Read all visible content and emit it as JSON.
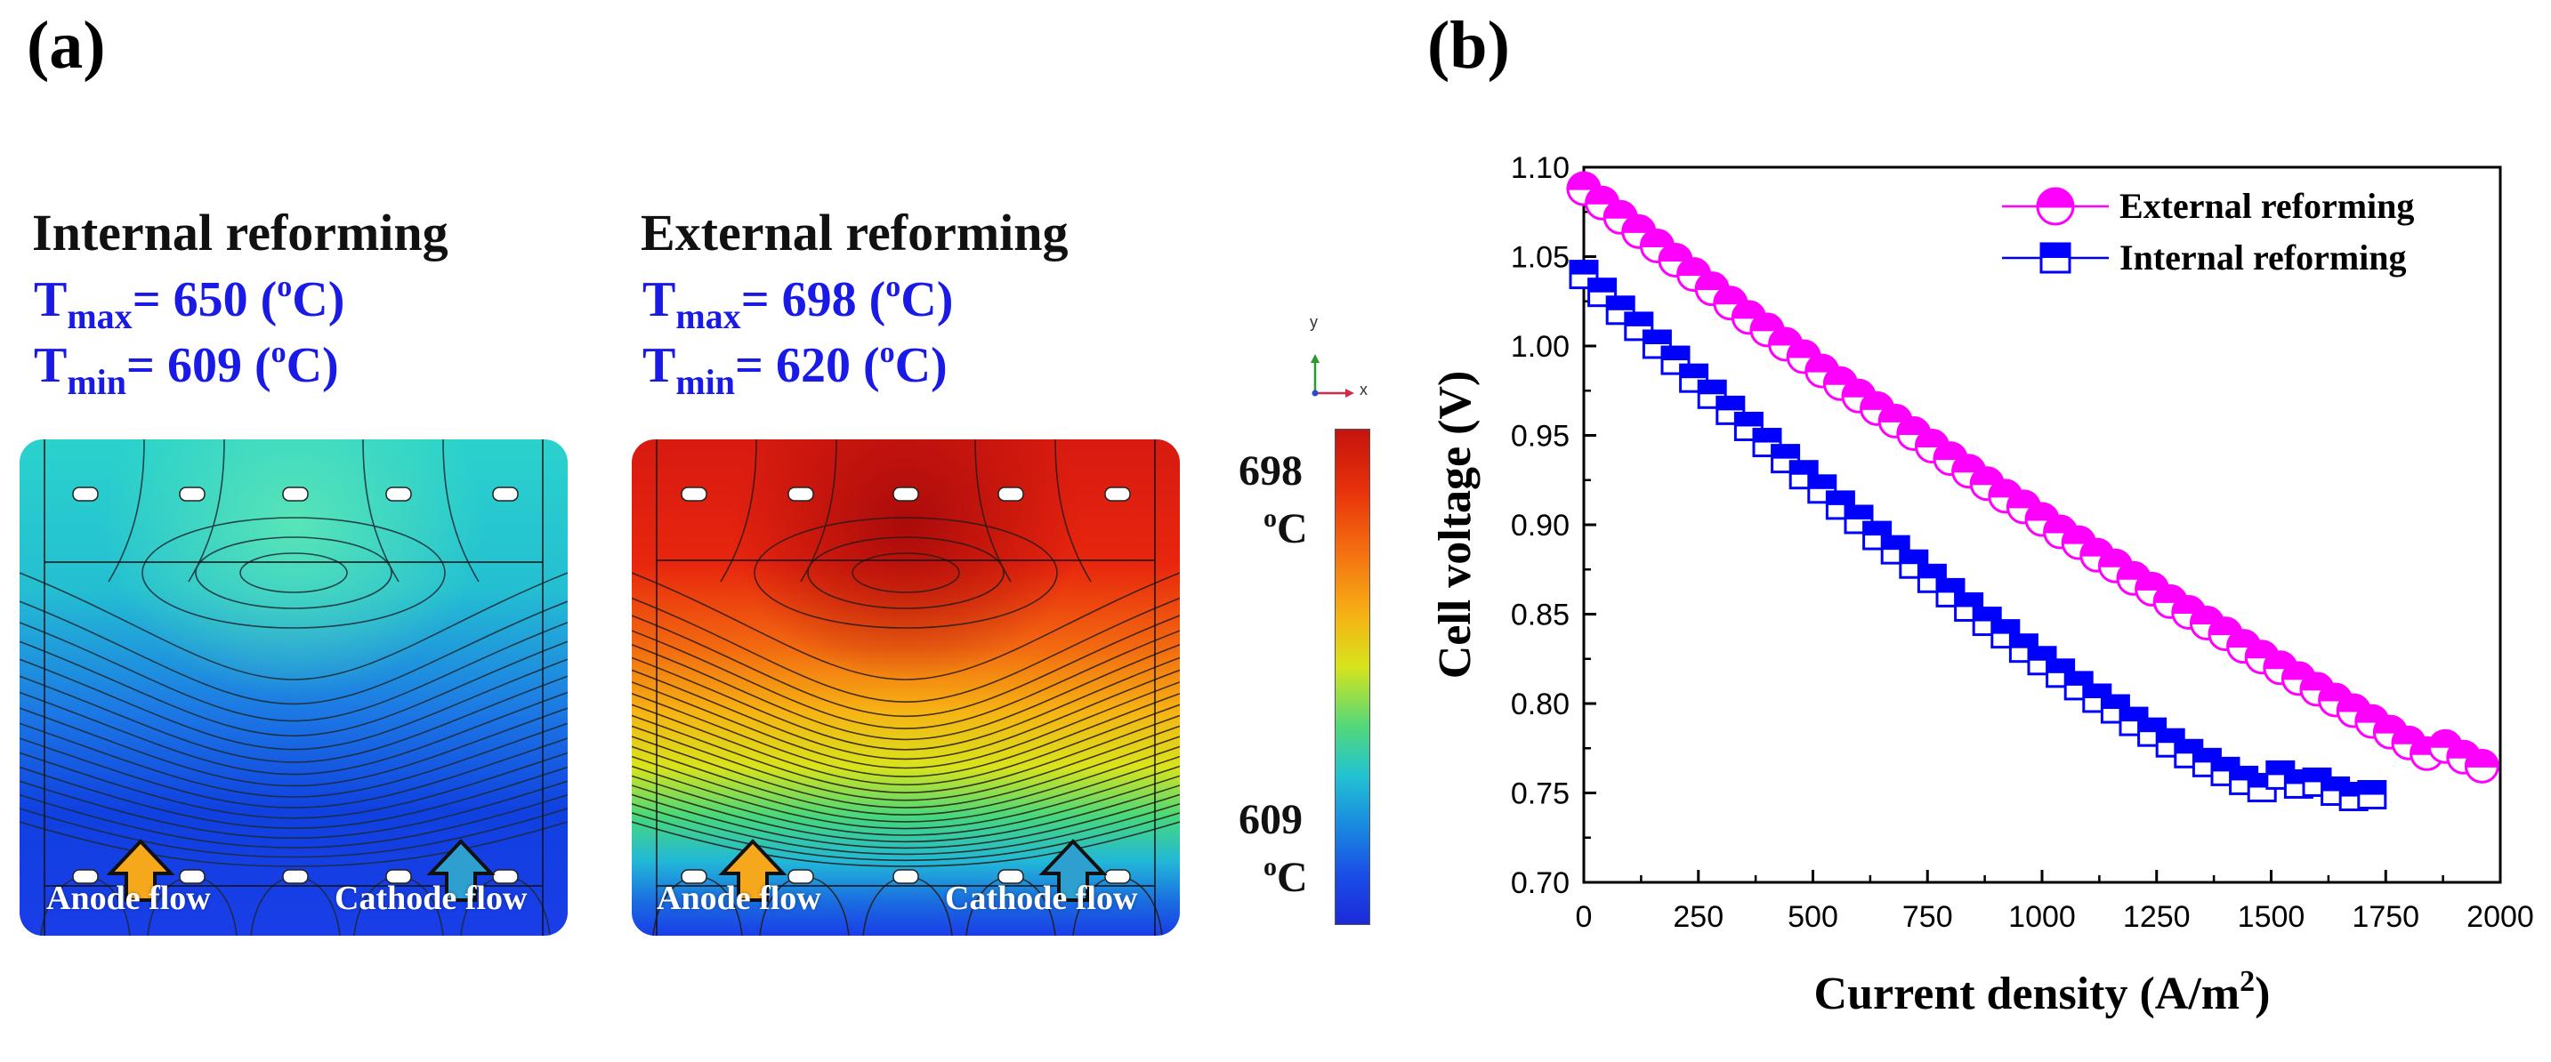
{
  "panel_a": {
    "label": "(a)",
    "internal": {
      "title": "Internal reforming",
      "tmax_prefix": "T",
      "tmax_sub": "max",
      "tmax_value": "= 650 (",
      "tmax_sup": "o",
      "tmax_unit": "C)",
      "tmin_prefix": "T",
      "tmin_sub": "min",
      "tmin_value": "= 609 (",
      "tmin_sup": "o",
      "tmin_unit": "C)",
      "anode_label": "Anode flow",
      "cathode_label": "Cathode flow"
    },
    "external": {
      "title": "External reforming",
      "tmax_prefix": "T",
      "tmax_sub": "max",
      "tmax_value": "= 698 (",
      "tmax_sup": "o",
      "tmax_unit": "C)",
      "tmin_prefix": "T",
      "tmin_sub": "min",
      "tmin_value": "= 620 (",
      "tmin_sup": "o",
      "tmin_unit": "C)",
      "anode_label": "Anode flow",
      "cathode_label": "Cathode flow"
    },
    "triad": {
      "y": "y",
      "x": "x"
    },
    "colorbar": {
      "max_value": "698",
      "max_unit_sup": "o",
      "max_unit": "C",
      "min_value": "609",
      "min_unit_sup": "o",
      "min_unit": "C"
    },
    "colors": {
      "anode_arrow": "#f5a81c",
      "cathode_arrow": "#2f9fd0",
      "text_blue": "#1a1ae6"
    }
  },
  "panel_b": {
    "label": "(b)"
  },
  "chart_data": {
    "type": "line",
    "title": "",
    "xlabel": "Current density (A/m",
    "xlabel_sup": "2",
    "xlabel_end": ")",
    "ylabel": "Cell voltage (V)",
    "xlim": [
      0,
      2000
    ],
    "ylim": [
      0.7,
      1.1
    ],
    "xticks": [
      0,
      250,
      500,
      750,
      1000,
      1250,
      1500,
      1750,
      2000
    ],
    "yticks": [
      0.7,
      0.75,
      0.8,
      0.85,
      0.9,
      0.95,
      1.0,
      1.05,
      1.1
    ],
    "xtick_labels": [
      "0",
      "250",
      "500",
      "750",
      "1000",
      "1250",
      "1500",
      "1750",
      "2000"
    ],
    "ytick_labels": [
      "0.70",
      "0.75",
      "0.80",
      "0.85",
      "0.90",
      "0.95",
      "1.00",
      "1.05",
      "1.10"
    ],
    "legend_position": "top-right",
    "series": [
      {
        "name": "External reforming",
        "marker": "circle-half",
        "color": "#ff00ff",
        "x": [
          0,
          40,
          80,
          120,
          160,
          200,
          240,
          280,
          320,
          360,
          400,
          440,
          480,
          520,
          560,
          600,
          640,
          680,
          720,
          760,
          800,
          840,
          880,
          920,
          960,
          1000,
          1040,
          1080,
          1120,
          1160,
          1200,
          1240,
          1280,
          1320,
          1360,
          1400,
          1440,
          1480,
          1520,
          1560,
          1600,
          1640,
          1680,
          1720,
          1760,
          1800,
          1840,
          1880,
          1920,
          1960
        ],
        "y": [
          1.088,
          1.08,
          1.072,
          1.064,
          1.056,
          1.048,
          1.04,
          1.032,
          1.024,
          1.016,
          1.009,
          1.001,
          0.994,
          0.986,
          0.979,
          0.972,
          0.965,
          0.958,
          0.951,
          0.944,
          0.937,
          0.93,
          0.923,
          0.916,
          0.91,
          0.903,
          0.896,
          0.89,
          0.883,
          0.877,
          0.87,
          0.864,
          0.857,
          0.851,
          0.845,
          0.839,
          0.832,
          0.826,
          0.82,
          0.814,
          0.808,
          0.802,
          0.796,
          0.79,
          0.784,
          0.778,
          0.772,
          0.776,
          0.77,
          0.765
        ]
      },
      {
        "name": "Internal reforming",
        "marker": "square-half",
        "color": "#0000ff",
        "x": [
          0,
          40,
          80,
          120,
          160,
          200,
          240,
          280,
          320,
          360,
          400,
          440,
          480,
          520,
          560,
          600,
          640,
          680,
          720,
          760,
          800,
          840,
          880,
          920,
          960,
          1000,
          1040,
          1080,
          1120,
          1160,
          1200,
          1240,
          1280,
          1320,
          1360,
          1400,
          1440,
          1480,
          1520,
          1560,
          1600,
          1640,
          1680,
          1720
        ],
        "y": [
          1.04,
          1.03,
          1.02,
          1.011,
          1.001,
          0.992,
          0.982,
          0.973,
          0.964,
          0.955,
          0.946,
          0.937,
          0.928,
          0.92,
          0.911,
          0.903,
          0.894,
          0.886,
          0.878,
          0.87,
          0.862,
          0.854,
          0.846,
          0.839,
          0.831,
          0.824,
          0.817,
          0.81,
          0.803,
          0.797,
          0.79,
          0.784,
          0.778,
          0.772,
          0.767,
          0.762,
          0.757,
          0.753,
          0.76,
          0.755,
          0.756,
          0.751,
          0.748,
          0.749
        ]
      }
    ]
  }
}
